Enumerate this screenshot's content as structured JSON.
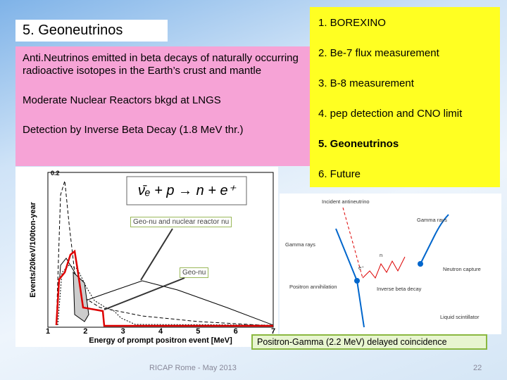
{
  "title": "5. Geoneutrinos",
  "description": {
    "paragraphs": [
      "Anti.Neutrinos emitted in beta decays of naturally occurring radioactive isotopes in the Earth’s crust and mantle",
      "Moderate Nuclear Reactors bkgd at LNGS",
      "Detection by Inverse Beta Decay (1.8 MeV thr.)"
    ]
  },
  "outline": {
    "items": [
      "1. BOREXINO",
      "2. Be-7 flux measurement",
      "3. B-8 measurement",
      "4. pep detection and CNO limit",
      "5. Geoneutrinos",
      "6. Future"
    ]
  },
  "plot": {
    "formula": "ν̄ₑ + p → n + e⁺",
    "y_label": "Events/20keV/100ton-year",
    "x_label": "Energy of prompt positron event [MeV]",
    "y_ticks": [
      "0.2"
    ],
    "x_ticks": [
      "1",
      "2",
      "3",
      "4",
      "5",
      "6",
      "7"
    ],
    "annotations": [
      "Geo-nu and nuclear reactor nu",
      "Geo-nu"
    ]
  },
  "diagram": {
    "labels": [
      "Incident antineutrino",
      "Gamma rays",
      "Gamma rays",
      "n",
      "e⁺",
      "Neutron capture",
      "Positron annihilation",
      "Inverse beta decay",
      "Liquid scintillator"
    ]
  },
  "caption": "Positron-Gamma (2.2 MeV) delayed coincidence",
  "footer": {
    "text": "RICAP Rome - May 2013",
    "page": "22"
  }
}
